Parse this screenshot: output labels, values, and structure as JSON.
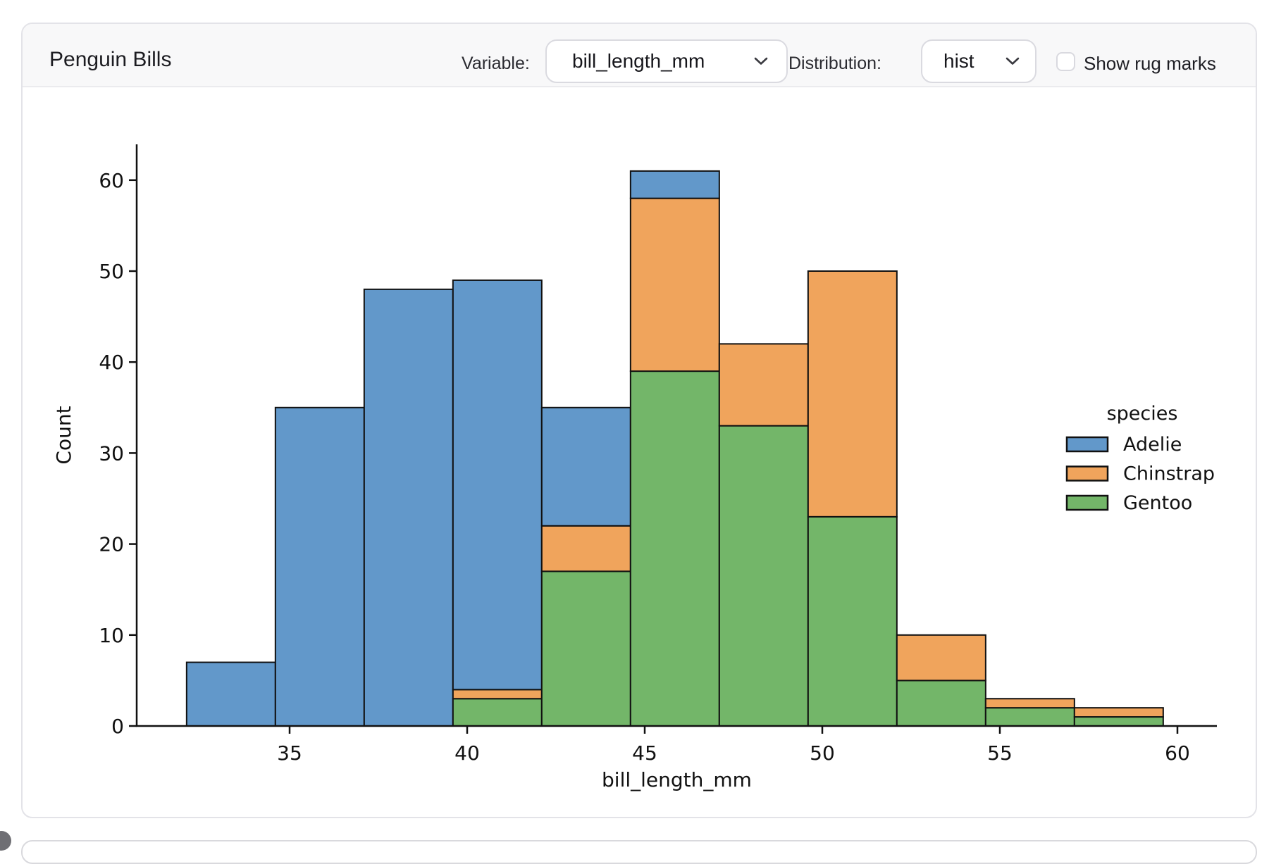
{
  "header": {
    "title": "Penguin Bills",
    "variable_label": "Variable:",
    "variable_value": "bill_length_mm",
    "distribution_label": "Distribution:",
    "distribution_value": "hist",
    "rug_label": "Show rug marks",
    "rug_checked": false
  },
  "chart_data": {
    "type": "bar",
    "subtype": "stacked-histogram",
    "xlabel": "bill_length_mm",
    "ylabel": "Count",
    "bin_edges": [
      32.1,
      34.6,
      37.1,
      39.6,
      42.1,
      44.6,
      47.1,
      49.6,
      52.1,
      54.6,
      57.1,
      59.6
    ],
    "series": [
      {
        "name": "Adelie",
        "color": "#6298CA",
        "values": [
          7,
          35,
          48,
          45,
          13,
          3,
          0,
          0,
          0,
          0,
          0
        ]
      },
      {
        "name": "Chinstrap",
        "color": "#F0A45C",
        "values": [
          0,
          0,
          0,
          1,
          5,
          19,
          9,
          27,
          5,
          1,
          1
        ]
      },
      {
        "name": "Gentoo",
        "color": "#73B669",
        "values": [
          0,
          0,
          0,
          3,
          17,
          39,
          33,
          23,
          5,
          2,
          1
        ]
      }
    ],
    "stack_bottom_to_top": [
      "Gentoo",
      "Chinstrap",
      "Adelie"
    ],
    "bar_totals": [
      7,
      35,
      48,
      49,
      35,
      61,
      42,
      50,
      10,
      3,
      2
    ],
    "x_ticks": [
      35,
      40,
      45,
      50,
      55,
      60
    ],
    "y_ticks": [
      0,
      10,
      20,
      30,
      40,
      50,
      60
    ],
    "xlim": [
      30.7,
      61.2
    ],
    "ylim": [
      0,
      64
    ],
    "grid": false,
    "edge_color": "#111111",
    "legend": {
      "title": "species",
      "entries": [
        "Adelie",
        "Chinstrap",
        "Gentoo"
      ],
      "position": "right"
    }
  }
}
